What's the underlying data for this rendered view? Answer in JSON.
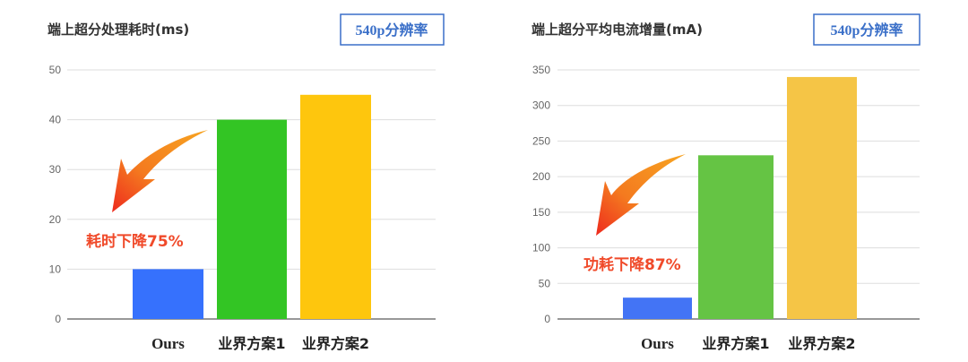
{
  "chart_data": [
    {
      "type": "bar",
      "title": "端上超分处理耗时(ms)",
      "badge": "540p分辨率",
      "categories": [
        "Ours",
        "业界方案1",
        "业界方案2"
      ],
      "values": [
        10,
        40,
        45
      ],
      "colors": [
        "#3671fd",
        "#33c524",
        "#fec60d"
      ],
      "yticks": [
        0,
        10,
        20,
        30,
        40,
        50
      ],
      "ylim": [
        0,
        50
      ],
      "grid": true,
      "annotation": "耗时下降75%",
      "annotation_color": "#f04a2a",
      "highlight_category_color": "#ee4a2a"
    },
    {
      "type": "bar",
      "title": "端上超分平均电流增量(mA)",
      "badge": "540p分辨率",
      "categories": [
        "Ours",
        "业界方案1",
        "业界方案2"
      ],
      "values": [
        30,
        230,
        340
      ],
      "colors": [
        "#4374f5",
        "#65c444",
        "#f5c546"
      ],
      "yticks": [
        0,
        50,
        100,
        150,
        200,
        250,
        300,
        350
      ],
      "ylim": [
        0,
        350
      ],
      "grid": true,
      "annotation": "功耗下降87%",
      "annotation_color": "#f04a2a",
      "highlight_category_color": "#ee4a2a"
    }
  ]
}
